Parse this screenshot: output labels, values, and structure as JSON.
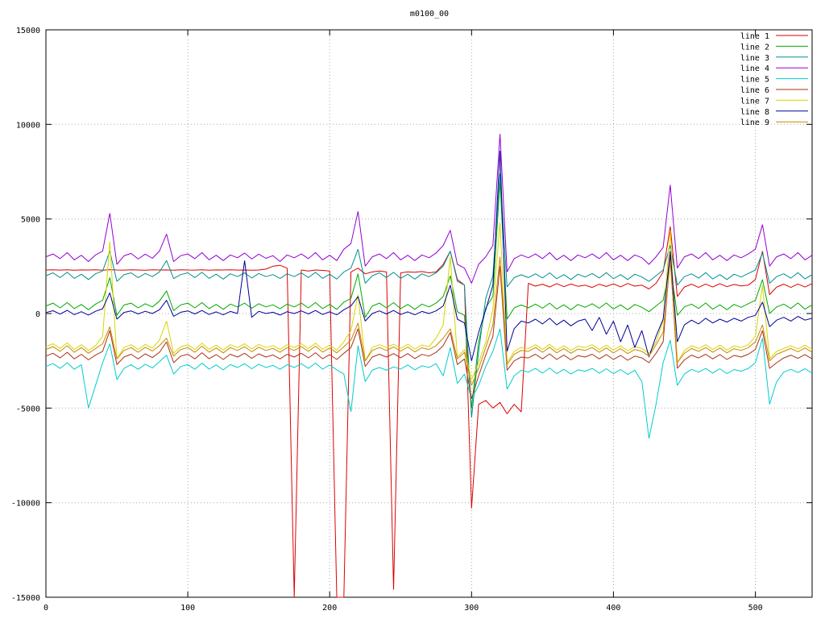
{
  "page": {
    "title": "m0100_00"
  },
  "chart_data": {
    "type": "line",
    "title": "m0100_00",
    "xlabel": "",
    "ylabel": "",
    "xlim": [
      0,
      540
    ],
    "ylim": [
      -15000,
      15000
    ],
    "x_ticks": [
      0,
      100,
      200,
      300,
      400,
      500
    ],
    "y_ticks": [
      -15000,
      -10000,
      -5000,
      0,
      5000,
      10000,
      15000
    ],
    "grid": true,
    "legend_position": "top-right",
    "x_start": 0,
    "x_step": 5,
    "series": [
      {
        "name": "line 1",
        "color": "#dd0000",
        "values": [
          2300,
          2310,
          2295,
          2315,
          2290,
          2305,
          2300,
          2310,
          2290,
          2320,
          2300,
          2295,
          2310,
          2300,
          2290,
          2315,
          2300,
          2305,
          2290,
          2310,
          2300,
          2295,
          2315,
          2290,
          2305,
          2300,
          2310,
          2295,
          2300,
          2290,
          2300,
          2350,
          2500,
          2550,
          2400,
          -15000,
          2300,
          2250,
          2300,
          2280,
          2250,
          -15000,
          -15000,
          2200,
          2400,
          2100,
          2200,
          2250,
          2200,
          -14600,
          2150,
          2200,
          2180,
          2220,
          2150,
          2200,
          2600,
          3300,
          1800,
          1500,
          -10300,
          -4800,
          -4600,
          -5000,
          -4700,
          -5300,
          -4800,
          -5200,
          1600,
          1450,
          1550,
          1400,
          1580,
          1420,
          1560,
          1440,
          1500,
          1380,
          1550,
          1430,
          1570,
          1410,
          1590,
          1450,
          1500,
          1300,
          1600,
          2200,
          4600,
          900,
          1400,
          1550,
          1380,
          1560,
          1400,
          1580,
          1420,
          1540,
          1460,
          1500,
          1800,
          3300,
          1000,
          1400,
          1550,
          1380,
          1560,
          1400,
          1580
        ]
      },
      {
        "name": "line 2",
        "color": "#00aa00",
        "values": [
          400,
          550,
          300,
          580,
          260,
          480,
          200,
          500,
          700,
          1900,
          -100,
          450,
          550,
          300,
          520,
          350,
          650,
          1200,
          150,
          460,
          550,
          300,
          580,
          260,
          480,
          220,
          500,
          350,
          550,
          280,
          520,
          350,
          460,
          250,
          500,
          350,
          550,
          300,
          580,
          260,
          480,
          220,
          600,
          800,
          2100,
          -200,
          400,
          550,
          300,
          580,
          260,
          480,
          220,
          500,
          350,
          550,
          900,
          2000,
          100,
          -100,
          -5000,
          -1500,
          300,
          900,
          7000,
          -300,
          300,
          450,
          300,
          500,
          280,
          550,
          240,
          460,
          200,
          480,
          330,
          520,
          280,
          560,
          240,
          460,
          200,
          480,
          330,
          100,
          400,
          700,
          2600,
          -100,
          350,
          500,
          270,
          560,
          230,
          460,
          200,
          480,
          330,
          520,
          700,
          1800,
          0,
          350,
          500,
          270,
          560,
          230,
          460
        ]
      },
      {
        "name": "line 3",
        "color": "#009090",
        "values": [
          2000,
          2150,
          1900,
          2180,
          1860,
          2080,
          1800,
          2100,
          2250,
          3300,
          1700,
          2050,
          2150,
          1900,
          2120,
          1950,
          2200,
          2800,
          1850,
          2060,
          2150,
          1900,
          2180,
          1860,
          2080,
          1820,
          2100,
          1950,
          2150,
          1880,
          2120,
          1950,
          2060,
          1850,
          2100,
          1950,
          2150,
          1900,
          2180,
          1860,
          2080,
          1820,
          2200,
          2400,
          3400,
          1600,
          2000,
          2150,
          1900,
          2180,
          1860,
          2080,
          1820,
          2100,
          1950,
          2150,
          2500,
          3300,
          1700,
          1500,
          -5500,
          -2000,
          800,
          2000,
          7400,
          1400,
          1900,
          2050,
          1900,
          2100,
          1880,
          2150,
          1840,
          2060,
          1800,
          2080,
          1930,
          2120,
          1880,
          2160,
          1840,
          2060,
          1800,
          2080,
          1930,
          1700,
          2000,
          2300,
          3600,
          1500,
          1950,
          2100,
          1870,
          2160,
          1830,
          2060,
          1800,
          2080,
          1930,
          2120,
          2300,
          3200,
          1600,
          1950,
          2100,
          1870,
          2160,
          1830,
          2060
        ]
      },
      {
        "name": "line 4",
        "color": "#9400d3",
        "values": [
          3000,
          3150,
          2900,
          3220,
          2840,
          3080,
          2750,
          3100,
          3300,
          5300,
          2600,
          3050,
          3180,
          2880,
          3140,
          2920,
          3300,
          4200,
          2750,
          3060,
          3150,
          2900,
          3220,
          2840,
          3080,
          2800,
          3100,
          2950,
          3200,
          2880,
          3140,
          2920,
          3060,
          2750,
          3100,
          2950,
          3150,
          2900,
          3220,
          2840,
          3080,
          2800,
          3400,
          3700,
          5400,
          2500,
          3000,
          3150,
          2900,
          3220,
          2840,
          3080,
          2800,
          3100,
          2950,
          3200,
          3600,
          4400,
          2600,
          2400,
          1600,
          2600,
          3000,
          3600,
          9500,
          2200,
          2900,
          3100,
          2950,
          3150,
          2900,
          3220,
          2840,
          3080,
          2800,
          3100,
          2950,
          3150,
          2900,
          3220,
          2840,
          3080,
          2800,
          3100,
          2950,
          2600,
          3000,
          3500,
          6800,
          2400,
          3000,
          3150,
          2900,
          3220,
          2840,
          3080,
          2800,
          3100,
          2950,
          3150,
          3400,
          4700,
          2500,
          3000,
          3150,
          2900,
          3220,
          2840,
          3080
        ]
      },
      {
        "name": "line 5",
        "color": "#00cccc",
        "values": [
          -2800,
          -2650,
          -2900,
          -2600,
          -2950,
          -2700,
          -5000,
          -3800,
          -2600,
          -1600,
          -3500,
          -2900,
          -2700,
          -2950,
          -2680,
          -2880,
          -2550,
          -2200,
          -3200,
          -2800,
          -2700,
          -2950,
          -2620,
          -2940,
          -2720,
          -2980,
          -2700,
          -2850,
          -2650,
          -2920,
          -2680,
          -2850,
          -2740,
          -2950,
          -2700,
          -2850,
          -2650,
          -2900,
          -2620,
          -2940,
          -2720,
          -2980,
          -3200,
          -5200,
          -1700,
          -3600,
          -3000,
          -2850,
          -3000,
          -2820,
          -2940,
          -2720,
          -2980,
          -2760,
          -2850,
          -2650,
          -3300,
          -1800,
          -3700,
          -3200,
          -4500,
          -3800,
          -2800,
          -2000,
          -800,
          -4000,
          -3300,
          -3000,
          -3100,
          -2900,
          -3150,
          -2880,
          -3180,
          -2950,
          -3200,
          -2980,
          -3050,
          -2900,
          -3150,
          -2920,
          -3180,
          -2960,
          -3220,
          -3000,
          -3600,
          -6600,
          -4800,
          -2600,
          -1400,
          -3800,
          -3200,
          -2950,
          -3100,
          -2900,
          -3150,
          -2920,
          -3180,
          -2960,
          -3050,
          -2900,
          -2600,
          -1300,
          -4800,
          -3600,
          -3100,
          -2950,
          -3120,
          -2920,
          -3150
        ]
      },
      {
        "name": "line 6",
        "color": "#aa3311",
        "values": [
          -2250,
          -2100,
          -2350,
          -2050,
          -2400,
          -2150,
          -2450,
          -2200,
          -2000,
          -900,
          -2700,
          -2300,
          -2150,
          -2400,
          -2130,
          -2330,
          -2050,
          -1500,
          -2600,
          -2250,
          -2150,
          -2400,
          -2070,
          -2390,
          -2170,
          -2430,
          -2150,
          -2300,
          -2100,
          -2370,
          -2130,
          -2300,
          -2190,
          -2400,
          -2150,
          -2300,
          -2100,
          -2350,
          -2070,
          -2390,
          -2170,
          -2430,
          -2100,
          -1800,
          -800,
          -2800,
          -2300,
          -2150,
          -2300,
          -2120,
          -2340,
          -2120,
          -2380,
          -2160,
          -2250,
          -2050,
          -1700,
          -1000,
          -2700,
          -2400,
          -4500,
          -3300,
          -2200,
          -1200,
          2500,
          -3000,
          -2500,
          -2300,
          -2350,
          -2150,
          -2400,
          -2130,
          -2430,
          -2200,
          -2450,
          -2230,
          -2300,
          -2150,
          -2400,
          -2170,
          -2430,
          -2210,
          -2470,
          -2250,
          -2350,
          -2600,
          -2100,
          -1500,
          3000,
          -2900,
          -2450,
          -2200,
          -2350,
          -2150,
          -2400,
          -2170,
          -2430,
          -2210,
          -2300,
          -2150,
          -1900,
          -900,
          -2900,
          -2600,
          -2350,
          -2200,
          -2370,
          -2170,
          -2400
        ]
      },
      {
        "name": "line 7",
        "color": "#d6d600",
        "values": [
          -1750,
          -1600,
          -1850,
          -1550,
          -1900,
          -1650,
          -1950,
          -1700,
          -1200,
          3800,
          -2400,
          -1800,
          -1650,
          -1900,
          -1630,
          -1830,
          -1400,
          -400,
          -2100,
          -1750,
          -1650,
          -1900,
          -1570,
          -1890,
          -1670,
          -1930,
          -1650,
          -1800,
          -1600,
          -1870,
          -1630,
          -1800,
          -1690,
          -1900,
          -1650,
          -1800,
          -1600,
          -1850,
          -1570,
          -1890,
          -1670,
          -1930,
          -1500,
          -900,
          1000,
          -2500,
          -1800,
          -1650,
          -1800,
          -1620,
          -1840,
          -1620,
          -1880,
          -1660,
          -1750,
          -1300,
          -600,
          3000,
          -2300,
          -1900,
          -3500,
          -2600,
          -1500,
          200,
          4800,
          -2600,
          -2000,
          -1800,
          -1850,
          -1650,
          -1900,
          -1630,
          -1930,
          -1700,
          -1950,
          -1730,
          -1800,
          -1650,
          -1900,
          -1670,
          -1930,
          -1710,
          -1970,
          -1750,
          -1850,
          -2100,
          -1500,
          -400,
          4400,
          -2600,
          -1950,
          -1700,
          -1850,
          -1650,
          -1900,
          -1670,
          -1930,
          -1710,
          -1800,
          -1650,
          -1200,
          1500,
          -2400,
          -2000,
          -1850,
          -1700,
          -1870,
          -1670,
          -1900
        ]
      },
      {
        "name": "line 8",
        "color": "#000099",
        "values": [
          50,
          150,
          -30,
          170,
          -60,
          100,
          -80,
          120,
          250,
          1100,
          -300,
          60,
          140,
          -20,
          120,
          0,
          200,
          700,
          -150,
          70,
          140,
          -20,
          160,
          -50,
          90,
          -70,
          110,
          0,
          2800,
          -200,
          120,
          0,
          70,
          -80,
          100,
          0,
          140,
          -20,
          160,
          -50,
          90,
          -70,
          200,
          400,
          900,
          -400,
          0,
          140,
          -20,
          160,
          -50,
          90,
          -70,
          110,
          0,
          140,
          400,
          1500,
          -300,
          -500,
          -2500,
          -1000,
          200,
          1500,
          8600,
          -2000,
          -800,
          -400,
          -500,
          -300,
          -550,
          -250,
          -600,
          -350,
          -650,
          -400,
          -300,
          -900,
          -200,
          -1100,
          -400,
          -1500,
          -600,
          -1800,
          -900,
          -2300,
          -1200,
          -300,
          3300,
          -1500,
          -600,
          -350,
          -550,
          -250,
          -500,
          -300,
          -450,
          -250,
          -400,
          -200,
          -100,
          600,
          -700,
          -350,
          -200,
          -400,
          -150,
          -350,
          -250
        ]
      },
      {
        "name": "line 9",
        "color": "#cc8800",
        "values": [
          -1900,
          -1750,
          -2000,
          -1700,
          -2050,
          -1800,
          -2100,
          -1850,
          -1600,
          -700,
          -2400,
          -1950,
          -1800,
          -2050,
          -1780,
          -1980,
          -1700,
          -1300,
          -2250,
          -1900,
          -1800,
          -2050,
          -1720,
          -2040,
          -1820,
          -2080,
          -1800,
          -1950,
          -1750,
          -2020,
          -1780,
          -1950,
          -1840,
          -2050,
          -1800,
          -1950,
          -1750,
          -2000,
          -1720,
          -2040,
          -1820,
          -2080,
          -1750,
          -1400,
          -500,
          -2500,
          -1950,
          -1800,
          -1950,
          -1770,
          -1990,
          -1770,
          -2030,
          -1810,
          -1900,
          -1700,
          -1300,
          -800,
          -2400,
          -2050,
          -3800,
          -2900,
          -1800,
          -600,
          3000,
          -2700,
          -2150,
          -1950,
          -2000,
          -1800,
          -2050,
          -1780,
          -2080,
          -1850,
          -2100,
          -1880,
          -1950,
          -1800,
          -2050,
          -1820,
          -2080,
          -1860,
          -2120,
          -1900,
          -2000,
          -2250,
          -1650,
          -1000,
          2800,
          -2600,
          -2100,
          -1850,
          -2000,
          -1800,
          -2050,
          -1820,
          -2080,
          -1860,
          -1950,
          -1800,
          -1500,
          -600,
          -2500,
          -2150,
          -2000,
          -1850,
          -2020,
          -1820,
          -2050
        ]
      }
    ]
  }
}
